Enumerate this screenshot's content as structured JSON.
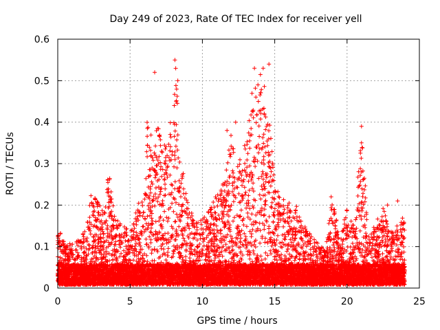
{
  "chart_data": {
    "type": "scatter",
    "title": "Day 249 of 2023, Rate Of TEC Index for receiver yell",
    "xlabel": "GPS time / hours",
    "ylabel": "ROTI / TECUs",
    "xlim": [
      0,
      25
    ],
    "ylim": [
      0,
      0.6
    ],
    "xticks": [
      0,
      5,
      10,
      15,
      20,
      25
    ],
    "yticks": [
      0,
      0.1,
      0.2,
      0.3,
      0.4,
      0.5,
      0.6
    ],
    "xtick_labels": [
      "0",
      "5",
      "10",
      "15",
      "20",
      "25"
    ],
    "ytick_labels": [
      "0",
      "0.1",
      "0.2",
      "0.3",
      "0.4",
      "0.5",
      "0.6"
    ],
    "grid": true,
    "marker": "+",
    "color": "#ff0000",
    "envelope": [
      [
        0.0,
        0.14
      ],
      [
        0.5,
        0.1
      ],
      [
        1.0,
        0.1
      ],
      [
        1.5,
        0.11
      ],
      [
        2.0,
        0.14
      ],
      [
        2.3,
        0.22
      ],
      [
        2.8,
        0.2
      ],
      [
        3.2,
        0.17
      ],
      [
        3.5,
        0.28
      ],
      [
        4.0,
        0.16
      ],
      [
        4.5,
        0.16
      ],
      [
        5.0,
        0.12
      ],
      [
        5.5,
        0.2
      ],
      [
        6.0,
        0.22
      ],
      [
        6.2,
        0.42
      ],
      [
        6.5,
        0.35
      ],
      [
        7.0,
        0.4
      ],
      [
        7.3,
        0.37
      ],
      [
        7.6,
        0.38
      ],
      [
        8.0,
        0.45
      ],
      [
        8.2,
        0.55
      ],
      [
        8.5,
        0.3
      ],
      [
        9.0,
        0.21
      ],
      [
        9.5,
        0.15
      ],
      [
        10.0,
        0.16
      ],
      [
        10.5,
        0.18
      ],
      [
        11.0,
        0.22
      ],
      [
        11.5,
        0.25
      ],
      [
        12.0,
        0.38
      ],
      [
        12.5,
        0.3
      ],
      [
        13.0,
        0.35
      ],
      [
        13.5,
        0.5
      ],
      [
        14.0,
        0.52
      ],
      [
        14.5,
        0.45
      ],
      [
        15.0,
        0.27
      ],
      [
        15.5,
        0.22
      ],
      [
        16.0,
        0.2
      ],
      [
        16.5,
        0.19
      ],
      [
        17.0,
        0.15
      ],
      [
        17.5,
        0.12
      ],
      [
        18.0,
        0.1
      ],
      [
        18.5,
        0.08
      ],
      [
        19.0,
        0.22
      ],
      [
        19.5,
        0.1
      ],
      [
        20.0,
        0.2
      ],
      [
        20.5,
        0.14
      ],
      [
        21.0,
        0.39
      ],
      [
        21.5,
        0.12
      ],
      [
        22.0,
        0.15
      ],
      [
        22.5,
        0.19
      ],
      [
        23.0,
        0.14
      ],
      [
        23.5,
        0.15
      ],
      [
        24.0,
        0.17
      ]
    ],
    "outliers": [
      [
        6.7,
        0.52
      ],
      [
        8.1,
        0.55
      ],
      [
        8.3,
        0.5
      ],
      [
        12.3,
        0.4
      ],
      [
        11.7,
        0.38
      ],
      [
        13.6,
        0.53
      ],
      [
        14.2,
        0.53
      ],
      [
        14.6,
        0.54
      ],
      [
        21.0,
        0.39
      ],
      [
        21.0,
        0.35
      ],
      [
        21.0,
        0.28
      ],
      [
        22.8,
        0.2
      ],
      [
        23.5,
        0.21
      ],
      [
        18.9,
        0.22
      ]
    ]
  }
}
